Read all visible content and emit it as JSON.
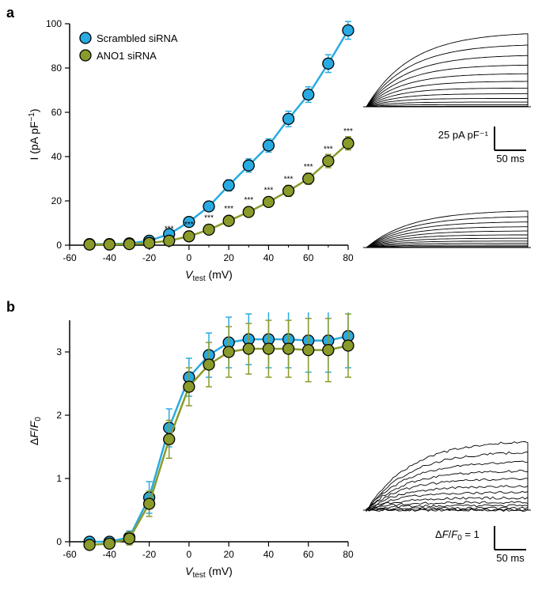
{
  "panelA": {
    "label": "a",
    "chart": {
      "type": "scatter-line",
      "xlabel": "V_test (mV)",
      "ylabel": "I (pA pF⁻¹)",
      "xlim": [
        -60,
        80
      ],
      "ylim": [
        0,
        100
      ],
      "xtick_step": 20,
      "ytick_step": 20,
      "xticks_minor": [
        -50,
        -30,
        -10,
        10,
        30,
        50,
        70
      ],
      "series": [
        {
          "name": "Scrambled siRNA",
          "color": "#29abe2",
          "marker_fill": "#29abe2",
          "marker_stroke": "#000000",
          "x": [
            -50,
            -40,
            -30,
            -20,
            -10,
            0,
            10,
            20,
            30,
            40,
            50,
            60,
            70,
            80
          ],
          "y": [
            0.5,
            0.5,
            0.8,
            2,
            5,
            10.5,
            17.5,
            27,
            36,
            45,
            57,
            68,
            82,
            97
          ],
          "yerr": [
            0.5,
            0.5,
            0.5,
            0.8,
            1,
            1.5,
            2,
            2.5,
            3,
            3,
            3.5,
            3.5,
            4,
            4
          ]
        },
        {
          "name": "ANO1 siRNA",
          "color": "#8a9a2b",
          "marker_fill": "#8a9a2b",
          "marker_stroke": "#000000",
          "x": [
            -50,
            -40,
            -30,
            -20,
            -10,
            0,
            10,
            20,
            30,
            40,
            50,
            60,
            70,
            80
          ],
          "y": [
            0.3,
            0.3,
            0.5,
            1,
            2,
            4,
            7,
            11,
            15,
            19.5,
            24.5,
            30,
            38,
            46
          ],
          "yerr": [
            0.5,
            0.5,
            0.5,
            0.8,
            1,
            1,
            1.5,
            1.5,
            2,
            2,
            2.5,
            2.5,
            3,
            3
          ],
          "sig": [
            "",
            "",
            "",
            "",
            "***",
            "***",
            "***",
            "***",
            "***",
            "***",
            "***",
            "***",
            "***",
            "***"
          ]
        }
      ],
      "marker_size": 7,
      "line_width": 2.5,
      "font_size_label": 14,
      "font_size_tick": 12,
      "font_size_legend": 13,
      "background_color": "#ffffff",
      "axis_color": "#000000"
    },
    "traces": {
      "scalebar_y_label": "25 pA pF⁻¹",
      "scalebar_x_label": "50 ms",
      "top_max": 1.0,
      "bottom_max": 0.5
    }
  },
  "panelB": {
    "label": "b",
    "chart": {
      "type": "scatter-line",
      "xlabel": "V_test (mV)",
      "ylabel": "ΔF/F₀",
      "xlim": [
        -60,
        80
      ],
      "ylim": [
        0,
        3.5
      ],
      "xtick_step": 20,
      "ytick_step": 1,
      "series": [
        {
          "name": "Scrambled siRNA",
          "color": "#29abe2",
          "marker_fill": "#29abe2",
          "marker_stroke": "#000000",
          "x": [
            -50,
            -40,
            -30,
            -20,
            -10,
            0,
            10,
            20,
            30,
            40,
            50,
            60,
            70,
            80
          ],
          "y": [
            0,
            0,
            0.07,
            0.7,
            1.8,
            2.6,
            2.95,
            3.15,
            3.2,
            3.2,
            3.2,
            3.18,
            3.18,
            3.25
          ],
          "yerr": [
            0.05,
            0.05,
            0.1,
            0.25,
            0.3,
            0.3,
            0.35,
            0.4,
            0.4,
            0.45,
            0.45,
            0.5,
            0.5,
            0.5
          ]
        },
        {
          "name": "ANO1 siRNA",
          "color": "#8a9a2b",
          "marker_fill": "#8a9a2b",
          "marker_stroke": "#000000",
          "x": [
            -50,
            -40,
            -30,
            -20,
            -10,
            0,
            10,
            20,
            30,
            40,
            50,
            60,
            70,
            80
          ],
          "y": [
            -0.05,
            -0.03,
            0.05,
            0.6,
            1.62,
            2.45,
            2.8,
            3.0,
            3.05,
            3.05,
            3.05,
            3.03,
            3.03,
            3.1
          ],
          "yerr": [
            0.05,
            0.05,
            0.1,
            0.2,
            0.3,
            0.3,
            0.35,
            0.4,
            0.4,
            0.45,
            0.45,
            0.5,
            0.5,
            0.5
          ]
        }
      ],
      "marker_size": 7,
      "line_width": 2.5,
      "font_size_label": 14,
      "font_size_tick": 12,
      "background_color": "#ffffff",
      "axis_color": "#000000"
    },
    "traces": {
      "scalebar_y_label": "ΔF/F₀ = 1",
      "scalebar_x_label": "50 ms"
    }
  }
}
